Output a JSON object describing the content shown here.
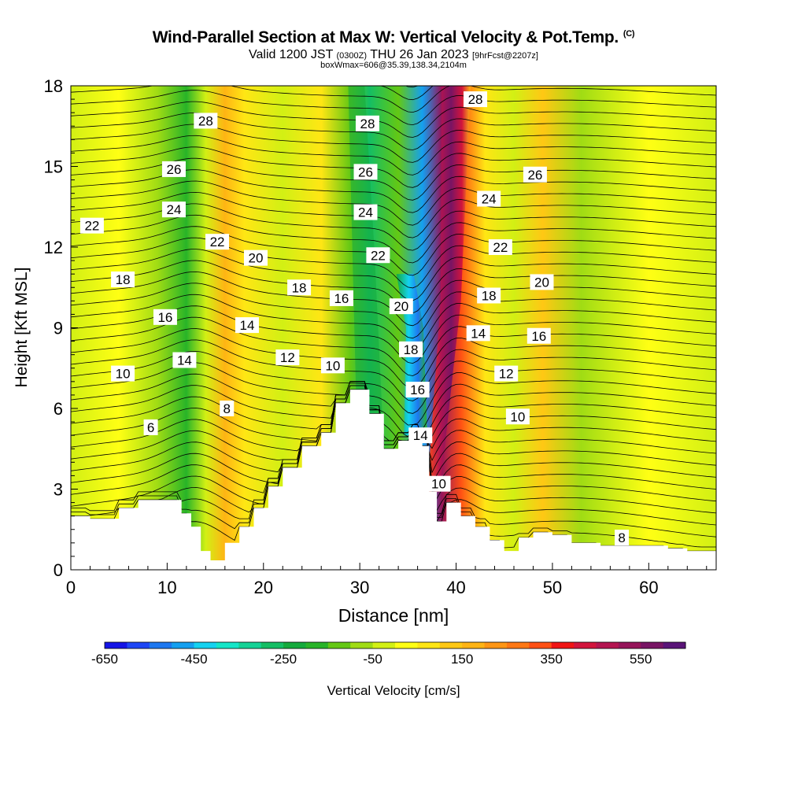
{
  "header": {
    "title": "Wind-Parallel Section at Max W: Vertical Velocity & Pot.Temp.",
    "copyright": "(C)",
    "valid_main": "Valid 1200 JST",
    "valid_utc": "(0300Z)",
    "valid_date": "THU 26 Jan 2023",
    "forecast": "[9hrFcst@2207z]",
    "box_info": "boxWmax=606@35.39,138.34,2104m"
  },
  "chart_data": {
    "type": "heatmap",
    "xlabel": "Distance [nm]",
    "ylabel": "Height [Kft MSL]",
    "xlim": [
      0,
      67
    ],
    "ylim": [
      0,
      18
    ],
    "x_ticks": [
      0,
      10,
      20,
      30,
      40,
      50,
      60
    ],
    "y_ticks": [
      0,
      3,
      6,
      9,
      12,
      15,
      18
    ],
    "colorbar": {
      "label": "Vertical Velocity [cm/s]",
      "tick_labels": [
        "-650",
        "-450",
        "-250",
        "-50",
        "150",
        "350",
        "550"
      ],
      "tick_values": [
        -650,
        -450,
        -250,
        -50,
        150,
        350,
        550
      ],
      "range": [
        -650,
        650
      ],
      "colors": [
        "#1414e6",
        "#1e46f5",
        "#1e78f0",
        "#14a0f0",
        "#14d2f0",
        "#14e6c8",
        "#14d296",
        "#14be64",
        "#14aa3c",
        "#28b428",
        "#64c814",
        "#a0dc14",
        "#d2f014",
        "#ffff14",
        "#ffe614",
        "#ffc814",
        "#ffb414",
        "#ff9614",
        "#ff7814",
        "#ff5014",
        "#f01414",
        "#d2143c",
        "#b41450",
        "#96145a",
        "#781464",
        "#5a1478"
      ]
    },
    "velocity_bands": [
      {
        "x_center": 0,
        "value": -30
      },
      {
        "x_center": 5,
        "value": 20
      },
      {
        "x_center": 9,
        "value": -60
      },
      {
        "x_center": 12,
        "value": -200
      },
      {
        "x_center": 14,
        "value": -30
      },
      {
        "x_center": 16,
        "value": 150
      },
      {
        "x_center": 18,
        "value": 50
      },
      {
        "x_center": 22,
        "value": -20
      },
      {
        "x_center": 26,
        "value": 100
      },
      {
        "x_center": 29,
        "value": -150
      },
      {
        "x_center": 31,
        "value": -300
      },
      {
        "x_center": 34,
        "value": -150
      },
      {
        "x_center": 36.5,
        "value": -500
      },
      {
        "x_center": 38.5,
        "value": 520
      },
      {
        "x_center": 40.5,
        "value": 300
      },
      {
        "x_center": 43,
        "value": 60
      },
      {
        "x_center": 46,
        "value": -40
      },
      {
        "x_center": 49,
        "value": 120
      },
      {
        "x_center": 53,
        "value": -60
      },
      {
        "x_center": 60,
        "value": 30
      },
      {
        "x_center": 67,
        "value": -30
      }
    ],
    "terrain_kft": [
      [
        0,
        2.0
      ],
      [
        2,
        1.9
      ],
      [
        4,
        1.9
      ],
      [
        5,
        2.3
      ],
      [
        7,
        2.6
      ],
      [
        9,
        2.6
      ],
      [
        10.5,
        2.6
      ],
      [
        11.5,
        2.1
      ],
      [
        12.5,
        1.6
      ],
      [
        13.5,
        0.7
      ],
      [
        14.5,
        0.35
      ],
      [
        16,
        1.0
      ],
      [
        17.5,
        1.6
      ],
      [
        19,
        2.3
      ],
      [
        20.5,
        3.1
      ],
      [
        22,
        3.8
      ],
      [
        24,
        4.6
      ],
      [
        26,
        5.1
      ],
      [
        27.5,
        6.2
      ],
      [
        29,
        6.7
      ],
      [
        31,
        5.8
      ],
      [
        32.5,
        4.5
      ],
      [
        34,
        4.8
      ],
      [
        35.5,
        5.1
      ],
      [
        36.5,
        4.6
      ],
      [
        37.2,
        2.9
      ],
      [
        38,
        1.8
      ],
      [
        39,
        2.5
      ],
      [
        40.5,
        2.0
      ],
      [
        42,
        1.6
      ],
      [
        43.5,
        1.1
      ],
      [
        45,
        0.7
      ],
      [
        46.5,
        1.2
      ],
      [
        48,
        1.4
      ],
      [
        50,
        1.3
      ],
      [
        52,
        1.0
      ],
      [
        55,
        0.9
      ],
      [
        58,
        0.9
      ],
      [
        62,
        0.8
      ],
      [
        64,
        0.7
      ],
      [
        67,
        0.7
      ]
    ],
    "contour_labels": [
      {
        "text": "28",
        "x": 14.0,
        "y": 16.7
      },
      {
        "text": "26",
        "x": 10.7,
        "y": 14.9
      },
      {
        "text": "24",
        "x": 10.7,
        "y": 13.4
      },
      {
        "text": "22",
        "x": 2.2,
        "y": 12.8
      },
      {
        "text": "22",
        "x": 15.2,
        "y": 12.2
      },
      {
        "text": "20",
        "x": 19.2,
        "y": 11.6
      },
      {
        "text": "18",
        "x": 5.4,
        "y": 10.8
      },
      {
        "text": "18",
        "x": 23.7,
        "y": 10.5
      },
      {
        "text": "16",
        "x": 9.8,
        "y": 9.4
      },
      {
        "text": "16",
        "x": 28.1,
        "y": 10.1
      },
      {
        "text": "14",
        "x": 18.3,
        "y": 9.1
      },
      {
        "text": "14",
        "x": 11.8,
        "y": 7.8
      },
      {
        "text": "12",
        "x": 22.5,
        "y": 7.9
      },
      {
        "text": "10",
        "x": 5.4,
        "y": 7.3
      },
      {
        "text": "10",
        "x": 27.2,
        "y": 7.6
      },
      {
        "text": "8",
        "x": 16.2,
        "y": 6.0
      },
      {
        "text": "6",
        "x": 8.3,
        "y": 5.3
      },
      {
        "text": "28",
        "x": 30.8,
        "y": 16.6
      },
      {
        "text": "26",
        "x": 30.6,
        "y": 14.8
      },
      {
        "text": "24",
        "x": 30.6,
        "y": 13.3
      },
      {
        "text": "22",
        "x": 31.9,
        "y": 11.7
      },
      {
        "text": "20",
        "x": 34.3,
        "y": 9.8
      },
      {
        "text": "18",
        "x": 35.3,
        "y": 8.2
      },
      {
        "text": "16",
        "x": 36.0,
        "y": 6.7
      },
      {
        "text": "14",
        "x": 36.3,
        "y": 5.0
      },
      {
        "text": "10",
        "x": 38.2,
        "y": 3.2
      },
      {
        "text": "28",
        "x": 42.0,
        "y": 17.5
      },
      {
        "text": "26",
        "x": 48.2,
        "y": 14.7
      },
      {
        "text": "24",
        "x": 43.4,
        "y": 13.8
      },
      {
        "text": "22",
        "x": 44.6,
        "y": 12.0
      },
      {
        "text": "20",
        "x": 48.9,
        "y": 10.7
      },
      {
        "text": "18",
        "x": 43.4,
        "y": 10.2
      },
      {
        "text": "14",
        "x": 42.3,
        "y": 8.8
      },
      {
        "text": "16",
        "x": 48.6,
        "y": 8.7
      },
      {
        "text": "12",
        "x": 45.2,
        "y": 7.3
      },
      {
        "text": "10",
        "x": 46.4,
        "y": 5.7
      },
      {
        "text": "8",
        "x": 57.2,
        "y": 1.2
      }
    ]
  }
}
